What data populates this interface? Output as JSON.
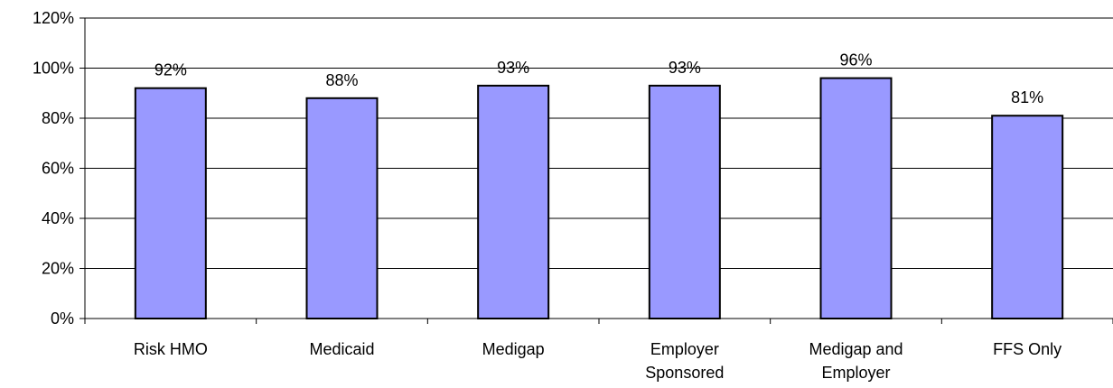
{
  "chart_data": {
    "type": "bar",
    "categories": [
      [
        "Risk HMO"
      ],
      [
        "Medicaid"
      ],
      [
        "Medigap"
      ],
      [
        "Employer",
        "Sponsored"
      ],
      [
        "Medigap and",
        "Employer"
      ],
      [
        "FFS Only"
      ]
    ],
    "values": [
      92,
      88,
      93,
      93,
      96,
      81
    ],
    "data_labels": [
      "92%",
      "88%",
      "93%",
      "93%",
      "96%",
      "81%"
    ],
    "ylim": [
      0,
      120
    ],
    "yticks": [
      0,
      20,
      40,
      60,
      80,
      100,
      120
    ],
    "ytick_labels": [
      "0%",
      "20%",
      "40%",
      "60%",
      "80%",
      "100%",
      "120%"
    ],
    "title": "",
    "xlabel": "",
    "ylabel": "",
    "grid": true,
    "legend": "none",
    "bar_color": "#9999ff",
    "bar_edge_color": "#000000"
  }
}
